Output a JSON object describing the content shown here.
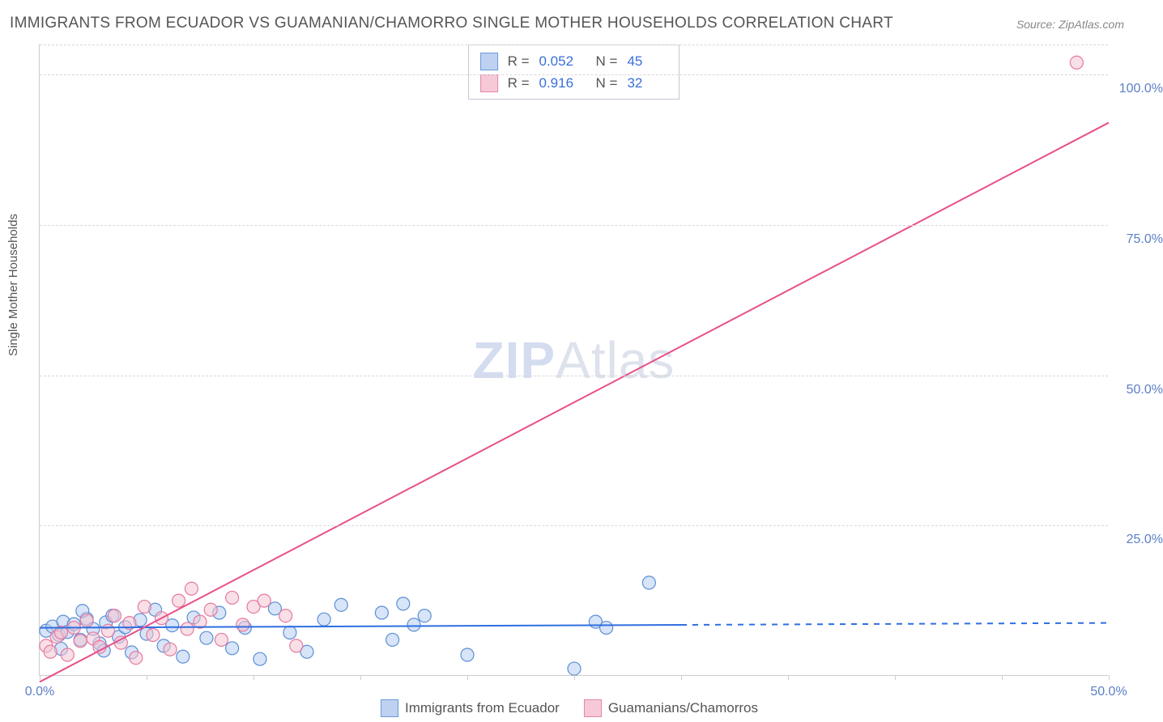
{
  "title": "IMMIGRANTS FROM ECUADOR VS GUAMANIAN/CHAMORRO SINGLE MOTHER HOUSEHOLDS CORRELATION CHART",
  "source": "Source: ZipAtlas.com",
  "y_axis_label": "Single Mother Households",
  "watermark_zip": "ZIP",
  "watermark_atlas": "Atlas",
  "chart": {
    "type": "scatter",
    "xlim": [
      0,
      50
    ],
    "ylim": [
      0,
      105
    ],
    "x_ticks": [
      0,
      5,
      10,
      15,
      20,
      25,
      30,
      35,
      40,
      45,
      50
    ],
    "x_tick_labels": {
      "0": "0.0%",
      "50": "50.0%"
    },
    "y_ticks": [
      25,
      50,
      75,
      100
    ],
    "y_tick_labels": {
      "25": "25.0%",
      "50": "50.0%",
      "75": "75.0%",
      "100": "100.0%"
    },
    "grid_color": "#d8d8d8",
    "background_color": "#ffffff",
    "series": [
      {
        "name": "Immigrants from Ecuador",
        "marker_fill": "#b8cdf0",
        "marker_stroke": "#5b8fd6",
        "marker_fill_opacity": 0.55,
        "marker_radius": 8,
        "line_color": "#2f6fe0",
        "line_width": 2,
        "line_solid_x_end": 30,
        "line_dash_after": true,
        "regression": {
          "y_at_x0": 8.0,
          "y_at_x50": 8.8
        },
        "R": "0.052",
        "N": "45",
        "points": [
          [
            0.3,
            7.5
          ],
          [
            0.6,
            8.2
          ],
          [
            0.9,
            6.8
          ],
          [
            1.1,
            9.0
          ],
          [
            1.3,
            7.3
          ],
          [
            1.6,
            8.6
          ],
          [
            1.9,
            6.0
          ],
          [
            2.2,
            9.5
          ],
          [
            2.5,
            7.8
          ],
          [
            2.8,
            5.4
          ],
          [
            3.1,
            8.9
          ],
          [
            3.4,
            10.0
          ],
          [
            3.7,
            6.5
          ],
          [
            4.0,
            8.1
          ],
          [
            4.3,
            3.9
          ],
          [
            4.7,
            9.3
          ],
          [
            5.0,
            7.0
          ],
          [
            5.4,
            11.0
          ],
          [
            5.8,
            5.0
          ],
          [
            6.2,
            8.4
          ],
          [
            6.7,
            3.2
          ],
          [
            7.2,
            9.7
          ],
          [
            7.8,
            6.3
          ],
          [
            8.4,
            10.5
          ],
          [
            9.0,
            4.6
          ],
          [
            9.6,
            8.0
          ],
          [
            10.3,
            2.8
          ],
          [
            11.0,
            11.2
          ],
          [
            11.7,
            7.2
          ],
          [
            12.5,
            4.0
          ],
          [
            13.3,
            9.4
          ],
          [
            14.1,
            11.8
          ],
          [
            16.0,
            10.5
          ],
          [
            16.5,
            6.0
          ],
          [
            17.0,
            12.0
          ],
          [
            17.5,
            8.5
          ],
          [
            18.0,
            10.0
          ],
          [
            20.0,
            3.5
          ],
          [
            25.0,
            1.2
          ],
          [
            26.0,
            9.0
          ],
          [
            26.5,
            8.0
          ],
          [
            28.5,
            15.5
          ],
          [
            1.0,
            4.5
          ],
          [
            2.0,
            10.8
          ],
          [
            3.0,
            4.2
          ]
        ]
      },
      {
        "name": "Guamanians/Chamorros",
        "marker_fill": "#f4c4d2",
        "marker_stroke": "#e47aa0",
        "marker_fill_opacity": 0.55,
        "marker_radius": 8,
        "line_color": "#e84f8a",
        "line_width": 2,
        "line_solid_x_end": 50,
        "line_dash_after": false,
        "regression": {
          "y_at_x0": -1.0,
          "y_at_x50": 92.0
        },
        "R": "0.916",
        "N": "32",
        "points": [
          [
            0.3,
            5.0
          ],
          [
            0.5,
            4.0
          ],
          [
            0.8,
            6.5
          ],
          [
            1.0,
            7.2
          ],
          [
            1.3,
            3.5
          ],
          [
            1.6,
            8.0
          ],
          [
            1.9,
            5.8
          ],
          [
            2.2,
            9.2
          ],
          [
            2.5,
            6.2
          ],
          [
            2.8,
            4.8
          ],
          [
            3.2,
            7.5
          ],
          [
            3.5,
            10.0
          ],
          [
            3.8,
            5.5
          ],
          [
            4.2,
            8.8
          ],
          [
            4.5,
            3.0
          ],
          [
            4.9,
            11.5
          ],
          [
            5.3,
            6.8
          ],
          [
            5.7,
            9.6
          ],
          [
            6.1,
            4.4
          ],
          [
            6.5,
            12.5
          ],
          [
            6.9,
            7.8
          ],
          [
            7.1,
            14.5
          ],
          [
            7.5,
            9.0
          ],
          [
            8.0,
            11.0
          ],
          [
            8.5,
            6.0
          ],
          [
            9.0,
            13.0
          ],
          [
            9.5,
            8.5
          ],
          [
            10.0,
            11.5
          ],
          [
            10.5,
            12.5
          ],
          [
            11.5,
            10.0
          ],
          [
            12.0,
            5.0
          ],
          [
            48.5,
            102.0
          ]
        ]
      }
    ]
  },
  "legend_top": {
    "label_R": "R =",
    "label_N": "N ="
  },
  "legend_bottom": {
    "series1": "Immigrants from Ecuador",
    "series2": "Guamanians/Chamorros"
  }
}
